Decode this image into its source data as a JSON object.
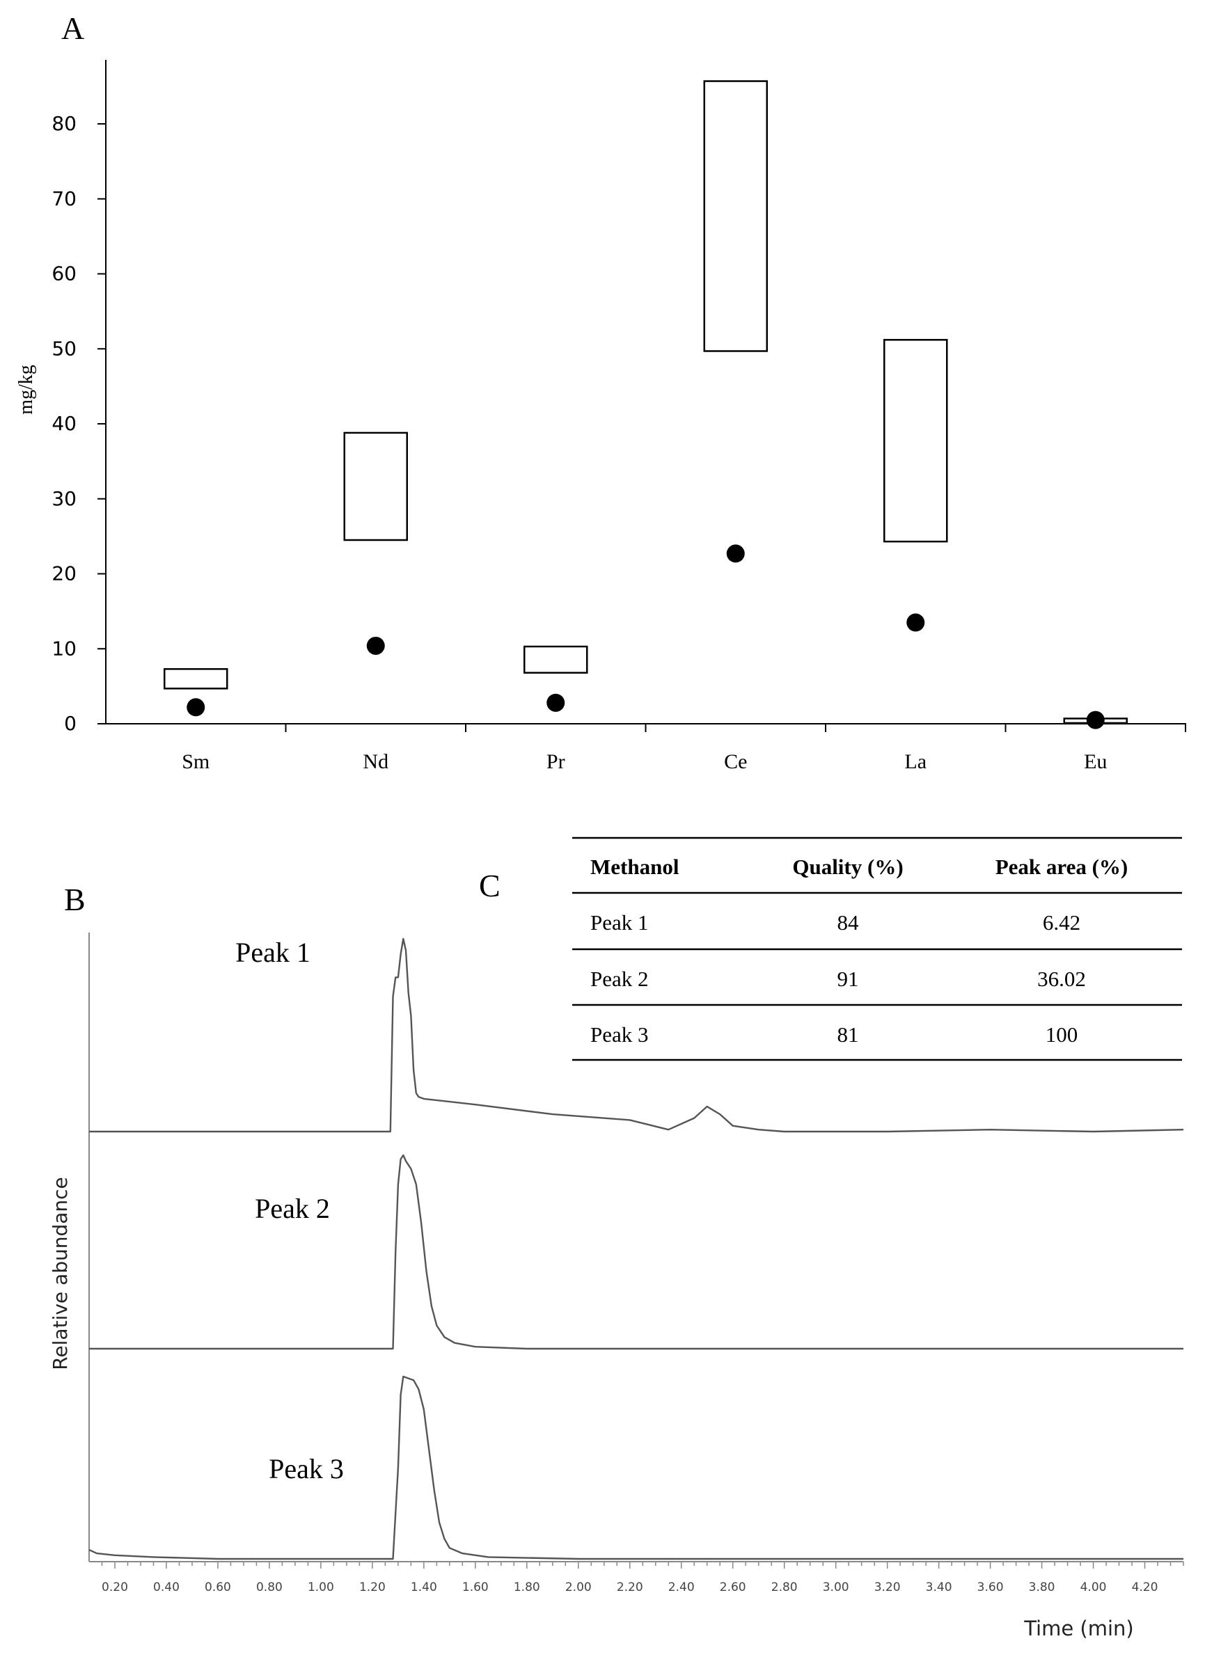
{
  "chart_data": [
    {
      "panel": "A",
      "type": "box-range-with-points",
      "ylabel": "mg/kg",
      "ylim": [
        0,
        90
      ],
      "yticks": [
        0,
        10,
        20,
        30,
        40,
        50,
        60,
        70,
        80
      ],
      "categories": [
        "Sm",
        "Nd",
        "Pr",
        "Ce",
        "La",
        "Eu"
      ],
      "ranges": [
        [
          4.7,
          7.3
        ],
        [
          24.5,
          38.8
        ],
        [
          6.8,
          10.3
        ],
        [
          49.7,
          85.7
        ],
        [
          24.3,
          51.2
        ],
        [
          0.1,
          0.7
        ]
      ],
      "points": [
        2.2,
        10.4,
        2.8,
        22.7,
        13.5,
        0.5
      ]
    },
    {
      "panel": "B",
      "type": "line",
      "xlabel": "Time (min)",
      "ylabel": "Relative abundance",
      "xlim": [
        0.1,
        4.35
      ],
      "xticks": [
        "0.20",
        "0.40",
        "0.60",
        "0.80",
        "1.00",
        "1.20",
        "1.40",
        "1.60",
        "1.80",
        "2.00",
        "2.20",
        "2.40",
        "2.60",
        "2.80",
        "3.00",
        "3.20",
        "3.40",
        "3.60",
        "3.80",
        "4.00",
        "4.20"
      ],
      "series": [
        {
          "name": "Peak 1",
          "x": [
            0.1,
            1.2,
            1.27,
            1.28,
            1.29,
            1.3,
            1.31,
            1.32,
            1.33,
            1.34,
            1.35,
            1.36,
            1.37,
            1.38,
            1.4,
            1.6,
            1.9,
            2.2,
            2.35,
            2.45,
            2.5,
            2.55,
            2.6,
            2.7,
            2.8,
            3.2,
            3.6,
            4.0,
            4.35
          ],
          "y": [
            0,
            0,
            0,
            0.7,
            0.8,
            0.8,
            0.92,
            1.0,
            0.94,
            0.72,
            0.6,
            0.32,
            0.2,
            0.18,
            0.17,
            0.14,
            0.09,
            0.06,
            0.01,
            0.07,
            0.13,
            0.09,
            0.03,
            0.01,
            0,
            0,
            0.01,
            0,
            0.01
          ]
        },
        {
          "name": "Peak 2",
          "x": [
            0.1,
            1.2,
            1.28,
            1.29,
            1.3,
            1.31,
            1.32,
            1.33,
            1.35,
            1.37,
            1.39,
            1.41,
            1.43,
            1.45,
            1.48,
            1.52,
            1.6,
            1.8,
            2.0,
            4.35
          ],
          "y": [
            0,
            0,
            0,
            0.5,
            0.85,
            0.98,
            1.0,
            0.97,
            0.93,
            0.85,
            0.65,
            0.4,
            0.22,
            0.12,
            0.06,
            0.03,
            0.01,
            0,
            0,
            0
          ]
        },
        {
          "name": "Peak 3",
          "x": [
            0.1,
            0.13,
            0.2,
            0.35,
            0.6,
            1.0,
            1.2,
            1.28,
            1.3,
            1.31,
            1.32,
            1.34,
            1.36,
            1.38,
            1.4,
            1.42,
            1.44,
            1.46,
            1.48,
            1.5,
            1.55,
            1.65,
            2.0,
            4.35
          ],
          "y": [
            0.05,
            0.03,
            0.02,
            0.01,
            0,
            0,
            0,
            0,
            0.5,
            0.9,
            1.0,
            0.99,
            0.98,
            0.93,
            0.82,
            0.6,
            0.38,
            0.2,
            0.11,
            0.06,
            0.03,
            0.01,
            0,
            0
          ]
        }
      ]
    },
    {
      "panel": "C",
      "type": "table",
      "columns": [
        "Methanol",
        "Quality  (%)",
        "Peak area (%)"
      ],
      "rows": [
        [
          "Peak 1",
          "84",
          "6.42"
        ],
        [
          "Peak 2",
          "91",
          "36.02"
        ],
        [
          "Peak 3",
          "81",
          "100"
        ]
      ]
    }
  ],
  "panel_labels": [
    "A",
    "B",
    "C"
  ]
}
